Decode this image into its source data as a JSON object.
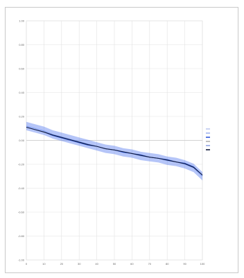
{
  "chart_data": {
    "type": "line",
    "title": "",
    "subtitle": "",
    "xlabel": "",
    "ylabel": "",
    "xlim": [
      0,
      100
    ],
    "ylim": [
      -1.0,
      1.0
    ],
    "yticks": [
      -1.0,
      -0.8,
      -0.6,
      -0.4,
      -0.2,
      0.0,
      0.2,
      0.4,
      0.6,
      0.8,
      1.0
    ],
    "xticks": [
      0,
      10,
      20,
      30,
      40,
      50,
      60,
      70,
      80,
      90,
      100
    ],
    "grid": true,
    "legend_position": "right",
    "series": [
      {
        "name": "",
        "color": "#7d9cf5",
        "x": [
          0,
          5,
          10,
          15,
          20,
          25,
          30,
          35,
          40,
          45,
          50,
          55,
          60,
          65,
          70,
          75,
          80,
          85,
          90,
          95,
          100
        ],
        "values": [
          0.12,
          0.1,
          0.08,
          0.05,
          0.03,
          0.01,
          -0.01,
          -0.03,
          -0.05,
          -0.07,
          -0.08,
          -0.1,
          -0.11,
          -0.13,
          -0.14,
          -0.15,
          -0.17,
          -0.18,
          -0.2,
          -0.23,
          -0.3
        ]
      },
      {
        "name": "",
        "color": "#2d57d8",
        "x": [
          0,
          5,
          10,
          15,
          20,
          25,
          30,
          35,
          40,
          45,
          50,
          55,
          60,
          65,
          70,
          75,
          80,
          85,
          90,
          95,
          100
        ],
        "values": [
          0.11,
          0.09,
          0.07,
          0.04,
          0.02,
          0.0,
          -0.02,
          -0.04,
          -0.05,
          -0.07,
          -0.08,
          -0.1,
          -0.11,
          -0.12,
          -0.14,
          -0.15,
          -0.16,
          -0.18,
          -0.19,
          -0.22,
          -0.29
        ]
      },
      {
        "name": "",
        "color": "#101a3c",
        "x": [
          0,
          5,
          10,
          15,
          20,
          25,
          30,
          35,
          40,
          45,
          50,
          55,
          60,
          65,
          70,
          75,
          80,
          85,
          90,
          95,
          100
        ],
        "values": [
          0.11,
          0.09,
          0.07,
          0.045,
          0.025,
          0.005,
          -0.015,
          -0.035,
          -0.05,
          -0.07,
          -0.08,
          -0.095,
          -0.11,
          -0.125,
          -0.14,
          -0.15,
          -0.165,
          -0.18,
          -0.195,
          -0.225,
          -0.29
        ]
      }
    ],
    "legend_entries": [
      "",
      "",
      "",
      "",
      "",
      ""
    ],
    "legend_colors": [
      "#bcc8ee",
      "#9fb2ee",
      "#2d57d8",
      "#b0b0b0",
      "#8fa3e6",
      "#101a3c"
    ]
  }
}
